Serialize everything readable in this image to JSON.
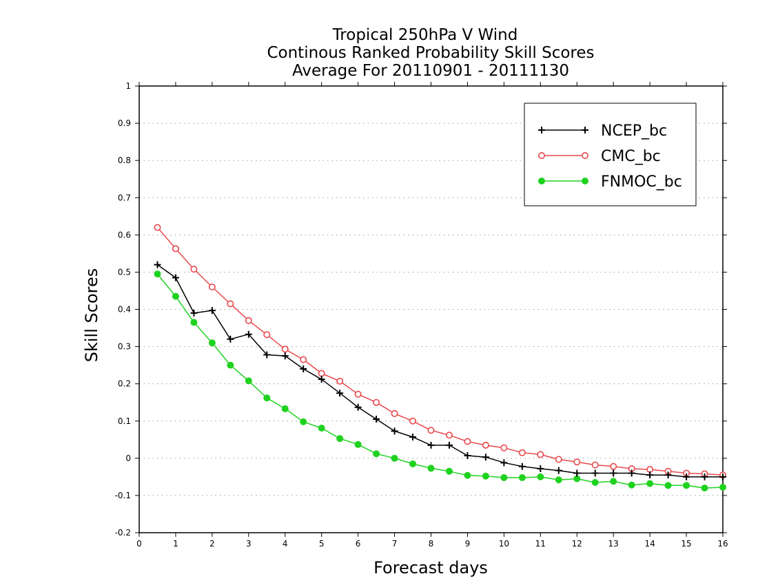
{
  "chart_data": {
    "type": "line",
    "title_lines": [
      "Tropical 250hPa V Wind",
      "Continous Ranked Probability Skill Scores",
      "Average For 20110901 - 20111130"
    ],
    "xlabel": "Forecast days",
    "ylabel": "Skill Scores",
    "xlim": [
      0,
      16
    ],
    "ylim": [
      -0.2,
      1
    ],
    "x_ticks": [
      0,
      1,
      2,
      3,
      4,
      5,
      6,
      7,
      8,
      9,
      10,
      11,
      12,
      13,
      14,
      15,
      16
    ],
    "y_ticks": [
      -0.2,
      -0.1,
      0,
      0.1,
      0.2,
      0.3,
      0.4,
      0.5,
      0.6,
      0.7,
      0.8,
      0.9,
      1
    ],
    "y_tick_labels": [
      "-0.2",
      "-0.1",
      "0",
      "0.1",
      "0.2",
      "0.3",
      "0.4",
      "0.5",
      "0.6",
      "0.7",
      "0.8",
      "0.9",
      "1"
    ],
    "grid": "horizontal dotted",
    "legend_position": "top-right",
    "x": [
      0.5,
      1.0,
      1.5,
      2.0,
      2.5,
      3.0,
      3.5,
      4.0,
      4.5,
      5.0,
      5.5,
      6.0,
      6.5,
      7.0,
      7.5,
      8.0,
      8.5,
      9.0,
      9.5,
      10.0,
      10.5,
      11.0,
      11.5,
      12.0,
      12.5,
      13.0,
      13.5,
      14.0,
      14.5,
      15.0,
      15.5,
      16.0
    ],
    "series": [
      {
        "name": "NCEP_bc",
        "color": "#000000",
        "marker": "plus",
        "values": [
          0.52,
          0.485,
          0.39,
          0.397,
          0.32,
          0.333,
          0.278,
          0.275,
          0.24,
          0.212,
          0.175,
          0.137,
          0.105,
          0.073,
          0.057,
          0.035,
          0.035,
          0.007,
          0.003,
          -0.012,
          -0.022,
          -0.028,
          -0.033,
          -0.04,
          -0.04,
          -0.04,
          -0.04,
          -0.045,
          -0.045,
          -0.05,
          -0.05,
          -0.05
        ]
      },
      {
        "name": "CMC_bc",
        "color": "#e8474c",
        "marker": "open-circle",
        "values": [
          0.62,
          0.563,
          0.508,
          0.46,
          0.415,
          0.37,
          0.332,
          0.293,
          0.265,
          0.228,
          0.207,
          0.172,
          0.15,
          0.12,
          0.1,
          0.075,
          0.062,
          0.045,
          0.035,
          0.028,
          0.015,
          0.01,
          -0.003,
          -0.01,
          -0.018,
          -0.022,
          -0.028,
          -0.03,
          -0.035,
          -0.04,
          -0.042,
          -0.045
        ]
      },
      {
        "name": "FNMOC_bc",
        "color": "#1fd21f",
        "marker": "filled-circle",
        "values": [
          0.495,
          0.435,
          0.365,
          0.31,
          0.25,
          0.208,
          0.162,
          0.133,
          0.098,
          0.081,
          0.053,
          0.037,
          0.012,
          0.0,
          -0.015,
          -0.027,
          -0.035,
          -0.046,
          -0.048,
          -0.052,
          -0.052,
          -0.05,
          -0.058,
          -0.055,
          -0.065,
          -0.062,
          -0.072,
          -0.068,
          -0.073,
          -0.073,
          -0.08,
          -0.078
        ]
      }
    ]
  }
}
